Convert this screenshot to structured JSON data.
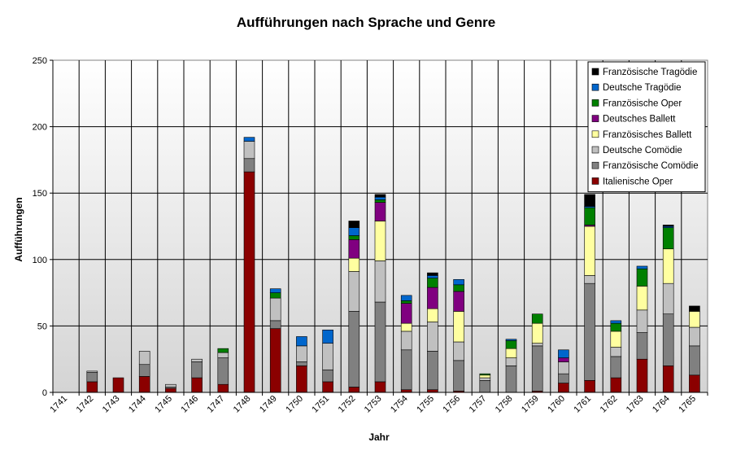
{
  "chart_data": {
    "type": "bar",
    "stacked": true,
    "title": "Aufführungen nach Sprache und Genre",
    "xlabel": "Jahr",
    "ylabel": "Aufführungen",
    "ylim": [
      0,
      250
    ],
    "yticks": [
      0,
      50,
      100,
      150,
      200,
      250
    ],
    "grid": true,
    "legend_position": "top-right",
    "categories": [
      "1741",
      "1742",
      "1743",
      "1744",
      "1745",
      "1746",
      "1747",
      "1748",
      "1749",
      "1750",
      "1751",
      "1752",
      "1753",
      "1754",
      "1755",
      "1756",
      "1757",
      "1758",
      "1759",
      "1760",
      "1761",
      "1762",
      "1763",
      "1764",
      "1765"
    ],
    "series": [
      {
        "name": "Italienische Oper",
        "color": "#8b0000",
        "values": [
          0,
          8,
          11,
          12,
          3,
          11,
          6,
          166,
          48,
          20,
          8,
          4,
          8,
          2,
          2,
          1,
          0,
          0,
          1,
          7,
          9,
          11,
          25,
          20,
          13
        ]
      },
      {
        "name": "Französische Comödie",
        "color": "#808080",
        "values": [
          0,
          7,
          0,
          9,
          1,
          12,
          20,
          10,
          6,
          3,
          9,
          57,
          60,
          30,
          29,
          23,
          9,
          20,
          34,
          7,
          73,
          16,
          20,
          39,
          22
        ]
      },
      {
        "name": "Deutsche Comödie",
        "color": "#c0c0c0",
        "values": [
          0,
          1,
          0,
          10,
          2,
          2,
          4,
          13,
          17,
          12,
          20,
          30,
          31,
          14,
          22,
          14,
          2,
          6,
          2,
          9,
          6,
          7,
          17,
          23,
          14
        ]
      },
      {
        "name": "Französisches Ballett",
        "color": "#ffffa0",
        "values": [
          0,
          0,
          0,
          0,
          0,
          0,
          0,
          0,
          0,
          0,
          0,
          10,
          30,
          6,
          10,
          23,
          2,
          7,
          15,
          0,
          37,
          12,
          18,
          26,
          12
        ]
      },
      {
        "name": "Deutsches Ballett",
        "color": "#800080",
        "values": [
          0,
          0,
          0,
          0,
          0,
          0,
          0,
          0,
          0,
          0,
          0,
          14,
          14,
          15,
          16,
          15,
          0,
          0,
          0,
          3,
          1,
          0,
          0,
          0,
          0
        ]
      },
      {
        "name": "Französische Oper",
        "color": "#008000",
        "values": [
          0,
          0,
          0,
          0,
          0,
          0,
          3,
          0,
          4,
          0,
          0,
          3,
          2,
          2,
          7,
          5,
          1,
          6,
          7,
          0,
          13,
          6,
          13,
          16,
          0
        ]
      },
      {
        "name": "Deutsche Tragödie",
        "color": "#0066cc",
        "values": [
          0,
          0,
          0,
          0,
          0,
          0,
          0,
          3,
          3,
          7,
          10,
          6,
          2,
          4,
          2,
          4,
          0,
          1,
          0,
          6,
          1,
          2,
          2,
          1,
          0
        ]
      },
      {
        "name": "Französische Tragödie",
        "color": "#000000",
        "values": [
          0,
          0,
          0,
          0,
          0,
          0,
          0,
          0,
          0,
          0,
          0,
          5,
          2,
          0,
          2,
          0,
          0,
          0,
          0,
          0,
          9,
          0,
          0,
          1,
          4
        ]
      }
    ]
  }
}
